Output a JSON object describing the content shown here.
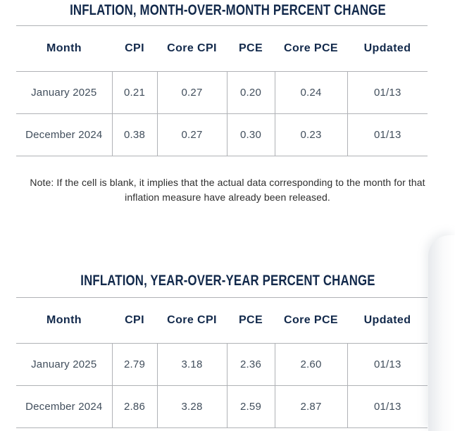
{
  "colors": {
    "heading_navy": "#12294b",
    "cell_text": "#414e5c",
    "grid_line": "#b0b2b6",
    "note_text": "#2e2e2e"
  },
  "note": "Note: If the cell is blank, it implies that the actual data corresponding to the month for that inflation measure have already been released.",
  "chart_data": [
    {
      "type": "table",
      "title": "INFLATION, MONTH-OVER-MONTH PERCENT CHANGE",
      "columns": [
        "Month",
        "CPI",
        "Core CPI",
        "PCE",
        "Core PCE",
        "Updated"
      ],
      "rows": [
        [
          "January 2025",
          "0.21",
          "0.27",
          "0.20",
          "0.24",
          "01/13"
        ],
        [
          "December 2024",
          "0.38",
          "0.27",
          "0.30",
          "0.23",
          "01/13"
        ]
      ]
    },
    {
      "type": "table",
      "title": "INFLATION, YEAR-OVER-YEAR PERCENT CHANGE",
      "columns": [
        "Month",
        "CPI",
        "Core CPI",
        "PCE",
        "Core PCE",
        "Updated"
      ],
      "rows": [
        [
          "January 2025",
          "2.79",
          "3.18",
          "2.36",
          "2.60",
          "01/13"
        ],
        [
          "December 2024",
          "2.86",
          "3.28",
          "2.59",
          "2.87",
          "01/13"
        ]
      ]
    }
  ]
}
